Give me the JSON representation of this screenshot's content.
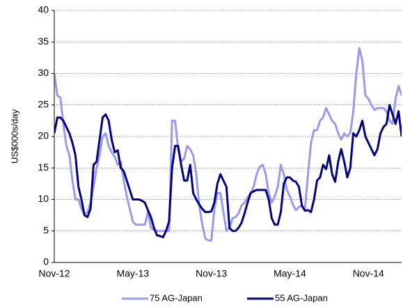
{
  "chart_data": {
    "type": "line",
    "y_label": "US$000s/day",
    "categories": [
      "Nov-12",
      null,
      null,
      null,
      null,
      null,
      null,
      null,
      null,
      null,
      null,
      null,
      null,
      null,
      null,
      null,
      null,
      null,
      null,
      null,
      null,
      null,
      null,
      null,
      null,
      null,
      "May-13",
      null,
      null,
      null,
      null,
      null,
      null,
      null,
      null,
      null,
      null,
      null,
      null,
      null,
      null,
      null,
      null,
      null,
      null,
      null,
      null,
      null,
      null,
      null,
      null,
      null,
      "Nov-13",
      null,
      null,
      null,
      null,
      null,
      null,
      null,
      null,
      null,
      null,
      null,
      null,
      null,
      null,
      null,
      null,
      null,
      null,
      null,
      null,
      null,
      null,
      null,
      null,
      null,
      "May-14",
      null,
      null,
      null,
      null,
      null,
      null,
      null,
      null,
      null,
      null,
      null,
      null,
      null,
      null,
      null,
      null,
      null,
      null,
      null,
      null,
      null,
      null,
      null,
      null,
      null,
      "Nov-14",
      null,
      null,
      null,
      null,
      null,
      null,
      null,
      null,
      null,
      null,
      null
    ],
    "series": [
      {
        "name": "75 AG-Japan",
        "color": "#9999ee",
        "values": [
          30,
          26.5,
          26.2,
          22,
          18.5,
          17,
          13,
          10,
          10,
          8.5,
          7.5,
          8,
          9.5,
          12,
          15,
          17,
          20,
          20.5,
          18.5,
          17.5,
          16.8,
          15.5,
          16,
          13,
          10.5,
          8.5,
          6.5,
          6,
          6,
          6,
          6,
          8,
          5.5,
          5.2,
          5,
          5,
          5,
          5,
          5,
          22.5,
          22.5,
          18,
          16,
          16.5,
          18.5,
          18,
          17,
          14,
          9,
          6,
          3.8,
          3.5,
          3.5,
          8.5,
          11,
          11,
          8,
          5,
          5.5,
          7,
          7.2,
          7.8,
          9,
          9.5,
          10.3,
          11,
          12,
          14,
          15.2,
          15.5,
          14,
          11,
          9.5,
          10.5,
          12,
          15.5,
          14,
          11.5,
          10.5,
          9.2,
          8.3,
          8.8,
          9,
          8.5,
          14,
          19,
          21,
          21,
          22.5,
          23,
          24.5,
          23.5,
          22.5,
          22,
          20.5,
          19.5,
          20.5,
          20,
          20.5,
          24,
          30,
          34,
          32,
          26.5,
          26,
          25,
          24.2,
          24.5,
          24.5,
          24.5,
          24,
          22.5,
          22,
          26,
          28,
          26.5
        ]
      },
      {
        "name": "55 AG-Japan",
        "color": "#000080",
        "values": [
          20.5,
          23,
          23,
          22.5,
          21.5,
          20.5,
          19,
          17,
          12,
          10,
          7.5,
          7.2,
          8.5,
          15.5,
          16,
          19.5,
          23,
          23.5,
          22.5,
          19.5,
          17.5,
          17.8,
          15,
          14.5,
          13,
          11.5,
          10,
          10,
          10,
          9.8,
          9.5,
          8.3,
          7.2,
          5.5,
          4.3,
          4.2,
          4,
          5,
          6.5,
          15,
          18.5,
          18.5,
          15.5,
          13,
          13,
          15.5,
          11,
          10,
          9.2,
          8.5,
          8,
          8,
          8.1,
          9.5,
          12.5,
          14,
          13,
          12,
          5.5,
          5,
          5,
          5.5,
          6.3,
          7.8,
          9.5,
          11,
          11.3,
          11.5,
          11.5,
          11.5,
          11.5,
          10,
          7,
          6,
          6,
          8,
          12.5,
          13.5,
          13.5,
          13,
          12.8,
          12,
          9,
          8.2,
          8.3,
          8,
          10,
          13,
          13.5,
          15.5,
          14.8,
          17,
          14,
          12.8,
          16,
          18,
          16,
          13.5,
          15,
          20.5,
          20,
          21,
          22.5,
          20,
          19,
          18,
          17,
          18,
          20.5,
          21.5,
          22,
          25,
          23.5,
          22,
          24,
          20
        ]
      }
    ],
    "ylim": [
      0,
      40
    ],
    "yticks": [
      0,
      5,
      10,
      15,
      20,
      25,
      30,
      35,
      40
    ],
    "grid": true
  }
}
